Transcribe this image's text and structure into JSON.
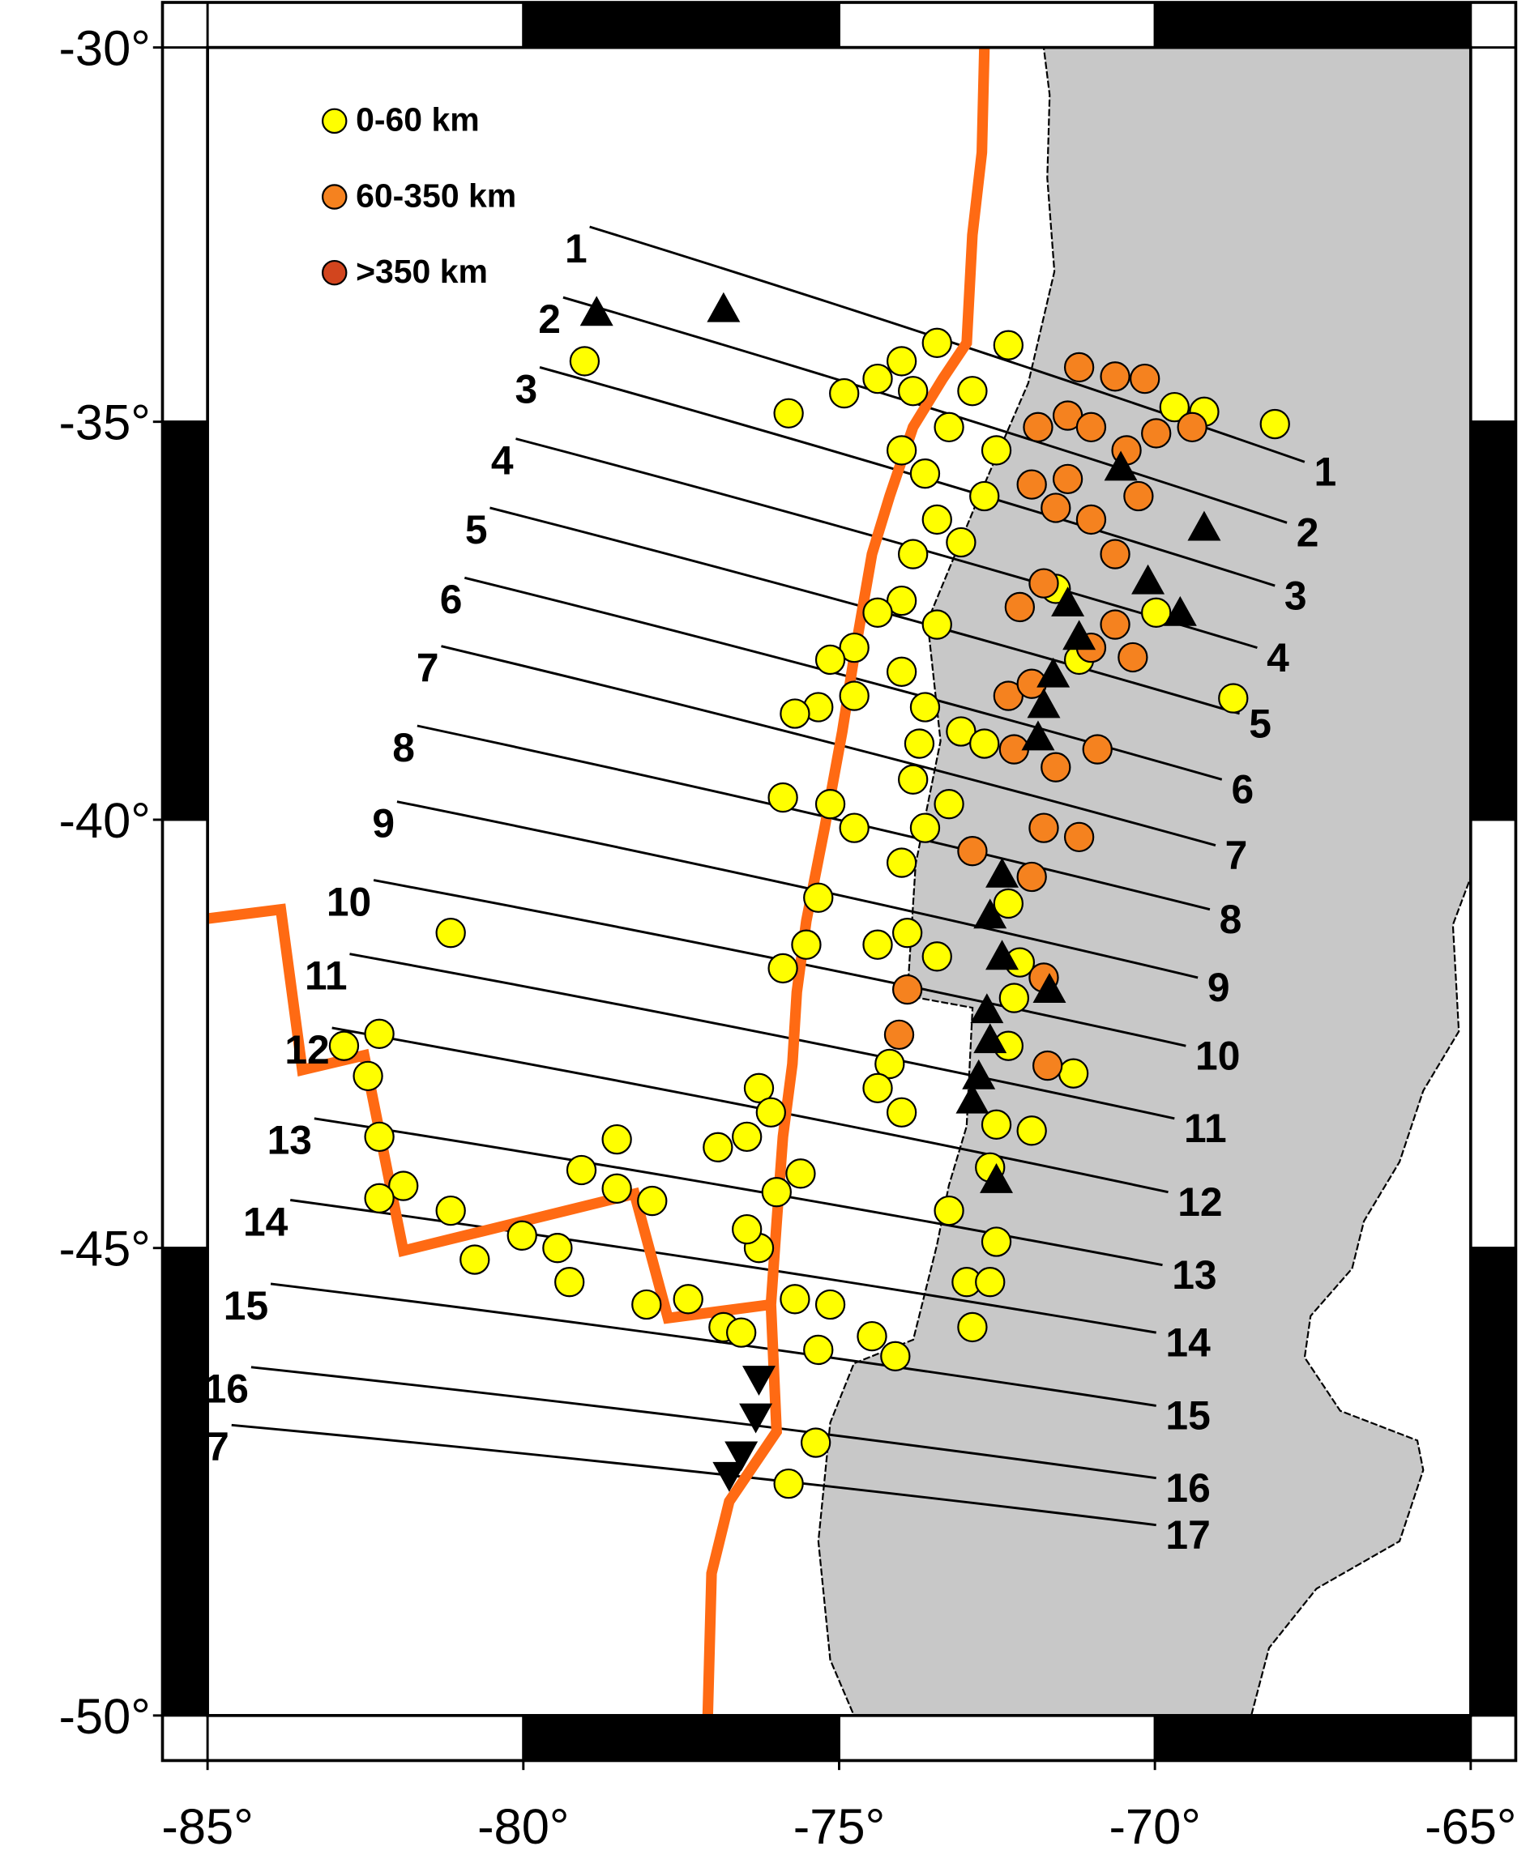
{
  "chart_data": {
    "type": "map",
    "projection": "mercator",
    "xlim": [
      -85,
      -65
    ],
    "ylim": [
      -50,
      -30
    ],
    "xticks": [
      {
        "value": -85,
        "label": "-85°"
      },
      {
        "value": -80,
        "label": "-80°"
      },
      {
        "value": -75,
        "label": "-75°"
      },
      {
        "value": -70,
        "label": "-70°"
      },
      {
        "value": -65,
        "label": "-65°"
      }
    ],
    "yticks": [
      {
        "value": -30,
        "label": "-30°"
      },
      {
        "value": -35,
        "label": "-35°"
      },
      {
        "value": -40,
        "label": "-40°"
      },
      {
        "value": -45,
        "label": "-45°"
      },
      {
        "value": -50,
        "label": "-50°"
      }
    ],
    "series": [
      {
        "name": "0-60 km",
        "color": "#ffff00",
        "points": [
          [
            -79.03,
            -34.21
          ],
          [
            -75.8,
            -34.89
          ],
          [
            -74.92,
            -34.63
          ],
          [
            -68.1,
            -35.03
          ],
          [
            -69.22,
            -34.87
          ],
          [
            -69.69,
            -34.81
          ],
          [
            -72.32,
            -34.0
          ],
          [
            -73.45,
            -33.97
          ],
          [
            -74.01,
            -34.21
          ],
          [
            -74.39,
            -34.44
          ],
          [
            -73.83,
            -34.6
          ],
          [
            -73.26,
            -35.07
          ],
          [
            -74.01,
            -35.37
          ],
          [
            -73.64,
            -35.67
          ],
          [
            -72.89,
            -34.6
          ],
          [
            -72.51,
            -35.37
          ],
          [
            -72.7,
            -35.96
          ],
          [
            -73.45,
            -36.26
          ],
          [
            -73.83,
            -36.7
          ],
          [
            -73.07,
            -36.55
          ],
          [
            -74.01,
            -37.29
          ],
          [
            -73.45,
            -37.59
          ],
          [
            -74.39,
            -37.44
          ],
          [
            -74.76,
            -37.88
          ],
          [
            -75.14,
            -38.03
          ],
          [
            -75.33,
            -38.62
          ],
          [
            -75.7,
            -38.7
          ],
          [
            -74.76,
            -38.48
          ],
          [
            -74.01,
            -38.18
          ],
          [
            -73.64,
            -38.62
          ],
          [
            -73.07,
            -38.92
          ],
          [
            -72.7,
            -39.07
          ],
          [
            -73.73,
            -39.07
          ],
          [
            -75.89,
            -39.73
          ],
          [
            -75.14,
            -39.81
          ],
          [
            -74.76,
            -40.1
          ],
          [
            -75.33,
            -40.94
          ],
          [
            -75.52,
            -41.5
          ],
          [
            -75.89,
            -41.78
          ],
          [
            -73.83,
            -39.51
          ],
          [
            -73.26,
            -39.81
          ],
          [
            -73.64,
            -40.1
          ],
          [
            -74.01,
            -40.52
          ],
          [
            -73.92,
            -41.36
          ],
          [
            -74.39,
            -41.5
          ],
          [
            -73.45,
            -41.64
          ],
          [
            -74.2,
            -42.9
          ],
          [
            -74.01,
            -43.46
          ],
          [
            -74.39,
            -43.18
          ],
          [
            -76.27,
            -43.18
          ],
          [
            -76.08,
            -43.46
          ],
          [
            -76.46,
            -43.74
          ],
          [
            -81.15,
            -41.36
          ],
          [
            -82.84,
            -42.69
          ],
          [
            -82.28,
            -42.55
          ],
          [
            -82.46,
            -43.04
          ],
          [
            -82.28,
            -43.74
          ],
          [
            -81.9,
            -44.3
          ],
          [
            -82.28,
            -44.44
          ],
          [
            -81.15,
            -44.58
          ],
          [
            -80.77,
            -45.13
          ],
          [
            -80.02,
            -44.86
          ],
          [
            -79.46,
            -45.0
          ],
          [
            -79.27,
            -45.38
          ],
          [
            -79.08,
            -44.12
          ],
          [
            -78.52,
            -43.77
          ],
          [
            -78.52,
            -44.33
          ],
          [
            -77.96,
            -44.47
          ],
          [
            -78.05,
            -45.63
          ],
          [
            -77.39,
            -45.57
          ],
          [
            -76.83,
            -45.88
          ],
          [
            -76.55,
            -45.94
          ],
          [
            -75.7,
            -45.57
          ],
          [
            -75.14,
            -45.63
          ],
          [
            -74.48,
            -45.98
          ],
          [
            -74.11,
            -46.2
          ],
          [
            -75.33,
            -46.13
          ],
          [
            -76.27,
            -45.0
          ],
          [
            -76.46,
            -44.79
          ],
          [
            -75.99,
            -44.37
          ],
          [
            -75.61,
            -44.16
          ],
          [
            -76.92,
            -43.86
          ],
          [
            -75.37,
            -47.14
          ],
          [
            -75.8,
            -47.58
          ],
          [
            -73.26,
            -44.58
          ],
          [
            -72.98,
            -45.38
          ],
          [
            -72.61,
            -45.38
          ],
          [
            -72.89,
            -45.88
          ],
          [
            -72.51,
            -44.93
          ],
          [
            -71.95,
            -43.67
          ],
          [
            -72.61,
            -44.09
          ],
          [
            -72.51,
            -43.6
          ],
          [
            -71.29,
            -43.01
          ],
          [
            -72.32,
            -42.69
          ],
          [
            -72.32,
            -41.01
          ],
          [
            -72.23,
            -42.13
          ],
          [
            -72.14,
            -41.71
          ],
          [
            -68.76,
            -38.51
          ],
          [
            -69.98,
            -37.44
          ],
          [
            -71.2,
            -38.03
          ],
          [
            -71.57,
            -37.14
          ]
        ]
      },
      {
        "name": "60-350 km",
        "color": "#f5821f",
        "points": [
          [
            -71.2,
            -34.29
          ],
          [
            -70.63,
            -34.41
          ],
          [
            -70.16,
            -34.44
          ],
          [
            -71.85,
            -35.07
          ],
          [
            -71.38,
            -34.92
          ],
          [
            -71.01,
            -35.07
          ],
          [
            -70.45,
            -35.37
          ],
          [
            -69.98,
            -35.15
          ],
          [
            -69.41,
            -35.07
          ],
          [
            -71.95,
            -35.81
          ],
          [
            -71.38,
            -35.74
          ],
          [
            -71.57,
            -36.11
          ],
          [
            -71.01,
            -36.26
          ],
          [
            -70.63,
            -36.7
          ],
          [
            -70.26,
            -35.96
          ],
          [
            -71.76,
            -37.07
          ],
          [
            -72.14,
            -37.37
          ],
          [
            -70.63,
            -37.59
          ],
          [
            -71.01,
            -37.88
          ],
          [
            -70.35,
            -38.0
          ],
          [
            -72.32,
            -38.48
          ],
          [
            -71.95,
            -38.33
          ],
          [
            -72.23,
            -39.14
          ],
          [
            -71.57,
            -39.36
          ],
          [
            -70.91,
            -39.14
          ],
          [
            -71.76,
            -40.1
          ],
          [
            -71.2,
            -40.21
          ],
          [
            -72.89,
            -40.38
          ],
          [
            -71.95,
            -40.69
          ],
          [
            -73.92,
            -42.03
          ],
          [
            -71.76,
            -41.89
          ],
          [
            -74.05,
            -42.56
          ],
          [
            -71.7,
            -42.92
          ]
        ]
      },
      {
        "name": ">350 km",
        "color": "#d2451e",
        "points": []
      }
    ],
    "triangles_up": [
      [
        -78.84,
        -33.57
      ],
      [
        -76.83,
        -33.52
      ],
      [
        -69.22,
        -36.36
      ],
      [
        -70.11,
        -37.04
      ],
      [
        -69.6,
        -37.44
      ],
      [
        -71.38,
        -37.32
      ],
      [
        -71.2,
        -37.74
      ],
      [
        -71.61,
        -38.21
      ],
      [
        -71.76,
        -38.59
      ],
      [
        -71.85,
        -38.99
      ],
      [
        -70.54,
        -35.59
      ],
      [
        -72.42,
        -40.66
      ],
      [
        -72.61,
        -41.15
      ],
      [
        -72.42,
        -41.64
      ],
      [
        -71.67,
        -42.03
      ],
      [
        -72.66,
        -42.27
      ],
      [
        -72.61,
        -42.62
      ],
      [
        -72.79,
        -43.04
      ],
      [
        -72.89,
        -43.32
      ],
      [
        -72.51,
        -44.23
      ]
    ],
    "triangles_down": [
      [
        -76.27,
        -46.45
      ],
      [
        -76.32,
        -46.86
      ],
      [
        -76.55,
        -47.27
      ],
      [
        -76.74,
        -47.49
      ]
    ],
    "plate_boundaries": {
      "color": "#ff6a13",
      "lines": [
        [
          [
            -72.7,
            -30.0
          ],
          [
            -72.74,
            -31.43
          ],
          [
            -72.89,
            -32.54
          ],
          [
            -72.98,
            -33.97
          ],
          [
            -73.36,
            -34.44
          ],
          [
            -73.83,
            -35.07
          ],
          [
            -74.2,
            -35.96
          ],
          [
            -74.48,
            -36.7
          ],
          [
            -74.77,
            -38.03
          ],
          [
            -74.95,
            -38.92
          ],
          [
            -75.23,
            -40.1
          ],
          [
            -75.52,
            -41.22
          ],
          [
            -75.67,
            -42.06
          ],
          [
            -75.74,
            -42.9
          ],
          [
            -75.89,
            -43.74
          ],
          [
            -75.99,
            -44.72
          ],
          [
            -76.08,
            -45.63
          ],
          [
            -75.99,
            -47.02
          ],
          [
            -76.74,
            -47.77
          ],
          [
            -77.02,
            -48.53
          ],
          [
            -77.08,
            -50.0
          ]
        ],
        [
          [
            -85.0,
            -41.19
          ],
          [
            -83.84,
            -41.08
          ],
          [
            -83.5,
            -42.97
          ],
          [
            -82.52,
            -42.8
          ],
          [
            -81.9,
            -45.03
          ],
          [
            -78.24,
            -44.39
          ],
          [
            -77.71,
            -45.78
          ],
          [
            -76.08,
            -45.63
          ]
        ]
      ]
    },
    "profiles": [
      {
        "label": "1",
        "start": [
          -78.95,
          -32.43
        ],
        "end": [
          -67.63,
          -35.52
        ]
      },
      {
        "label": "2",
        "start": [
          -79.37,
          -33.37
        ],
        "end": [
          -67.91,
          -36.3
        ]
      },
      {
        "label": "3",
        "start": [
          -79.74,
          -34.29
        ],
        "end": [
          -68.1,
          -37.1
        ]
      },
      {
        "label": "4",
        "start": [
          -80.12,
          -35.22
        ],
        "end": [
          -68.38,
          -37.88
        ]
      },
      {
        "label": "5",
        "start": [
          -80.53,
          -36.11
        ],
        "end": [
          -68.66,
          -38.7
        ]
      },
      {
        "label": "6",
        "start": [
          -80.93,
          -37.0
        ],
        "end": [
          -68.94,
          -39.51
        ]
      },
      {
        "label": "7",
        "start": [
          -81.3,
          -37.86
        ],
        "end": [
          -69.04,
          -40.31
        ]
      },
      {
        "label": "8",
        "start": [
          -81.68,
          -38.85
        ],
        "end": [
          -69.13,
          -41.08
        ]
      },
      {
        "label": "9",
        "start": [
          -82.0,
          -39.78
        ],
        "end": [
          -69.32,
          -41.89
        ]
      },
      {
        "label": "10",
        "start": [
          -82.37,
          -40.73
        ],
        "end": [
          -69.51,
          -42.69
        ]
      },
      {
        "label": "11",
        "start": [
          -82.75,
          -41.61
        ],
        "end": [
          -69.69,
          -43.53
        ]
      },
      {
        "label": "12",
        "start": [
          -83.03,
          -42.48
        ],
        "end": [
          -69.79,
          -44.37
        ]
      },
      {
        "label": "13",
        "start": [
          -83.31,
          -43.53
        ],
        "end": [
          -69.88,
          -45.19
        ]
      },
      {
        "label": "14",
        "start": [
          -83.69,
          -44.46
        ],
        "end": [
          -69.98,
          -45.94
        ]
      },
      {
        "label": "15",
        "start": [
          -84.0,
          -45.4
        ],
        "end": [
          -69.98,
          -46.74
        ]
      },
      {
        "label": "16",
        "start": [
          -84.31,
          -46.32
        ],
        "end": [
          -69.98,
          -47.52
        ]
      },
      {
        "label": "17",
        "start": [
          -84.62,
          -46.95
        ],
        "end": [
          -69.98,
          -48.02
        ]
      }
    ]
  }
}
